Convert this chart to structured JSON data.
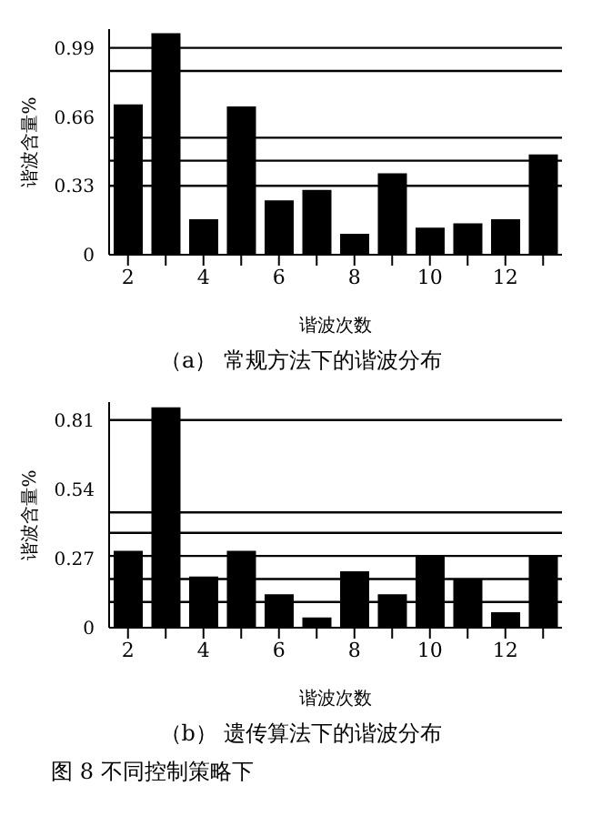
{
  "chart_data": [
    {
      "type": "bar",
      "title": "（a） 常规方法下的谐波分布",
      "xlabel": "谐波次数",
      "ylabel": "谐波含量%",
      "categories": [
        "2",
        null,
        "4",
        null,
        "6",
        null,
        "8",
        null,
        "10",
        null,
        "12",
        null
      ],
      "values": [
        0.72,
        1.06,
        0.17,
        0.71,
        0.26,
        0.31,
        0.1,
        0.39,
        0.13,
        0.15,
        0.17,
        0.48
      ],
      "color": "#000000",
      "ylim": [
        0,
        1.08
      ],
      "yticks": [
        0,
        0.33,
        0.66,
        0.99
      ],
      "ref_lines": [
        {
          "axis": "y",
          "value": 0.99,
          "color": "#000000"
        },
        {
          "axis": "y",
          "value": 0.88,
          "color": "#000000"
        },
        {
          "axis": "y",
          "value": 0.56,
          "color": "#000000"
        },
        {
          "axis": "y",
          "value": 0.45,
          "color": "#000000"
        },
        {
          "axis": "y",
          "value": 0.33,
          "color": "#000000"
        }
      ]
    },
    {
      "type": "bar",
      "title": "（b） 遗传算法下的谐波分布",
      "xlabel": "谐波次数",
      "ylabel": "谐波含量%",
      "categories": [
        "2",
        null,
        "4",
        null,
        "6",
        null,
        "8",
        null,
        "10",
        null,
        "12",
        null
      ],
      "values": [
        0.3,
        0.86,
        0.2,
        0.3,
        0.13,
        0.04,
        0.22,
        0.13,
        0.28,
        0.19,
        0.06,
        0.28
      ],
      "color": "#000000",
      "ylim": [
        0,
        0.88
      ],
      "yticks": [
        0,
        0.27,
        0.54,
        0.81
      ],
      "ref_lines": [
        {
          "axis": "y",
          "value": 0.81,
          "color": "#000000"
        },
        {
          "axis": "y",
          "value": 0.45,
          "color": "#000000"
        },
        {
          "axis": "y",
          "value": 0.37,
          "color": "#000000"
        },
        {
          "axis": "y",
          "value": 0.28,
          "color": "#000000"
        },
        {
          "axis": "y",
          "value": 0.19,
          "color": "#000000"
        },
        {
          "axis": "y",
          "value": 0.1,
          "color": "#000000"
        }
      ],
      "annotations": [
        "图 8 不同控制策略下"
      ]
    }
  ]
}
